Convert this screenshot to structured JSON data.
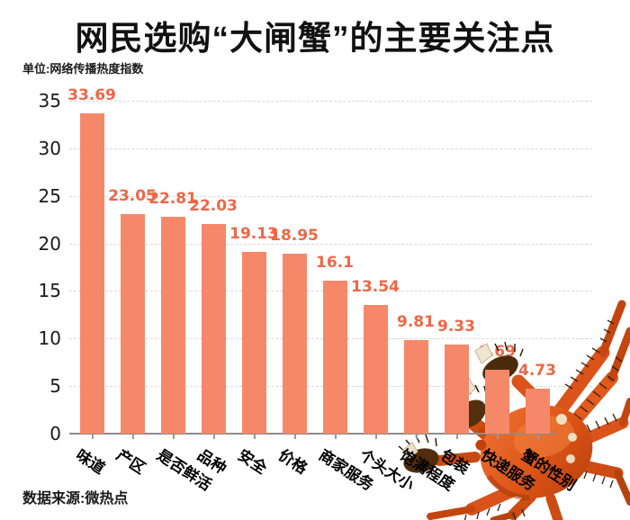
{
  "title": "网民选购“大闸蟹”的主要关注点",
  "unit_label": "单位:网络传播热度指数",
  "source": "数据来源:微热点",
  "decor": {
    "crab_image": "cooked-hairy-crab"
  },
  "colors": {
    "bar": "#f6886a",
    "value_label": "#ee6747",
    "gridline": "#d7d7d7",
    "axis": "#8c8c8c",
    "text": "#111111",
    "crab_body": "#dc5517"
  },
  "chart_data": {
    "type": "bar",
    "title": "网民选购“大闸蟹”的主要关注点",
    "xlabel": "",
    "ylabel": "网络传播热度指数",
    "categories": [
      "味道",
      "产区",
      "是否鲜活",
      "品种",
      "安全",
      "价格",
      "商家服务",
      "个头大小",
      "饱满程度",
      "包装",
      "快递服务",
      "蟹的性别"
    ],
    "values": [
      33.69,
      23.05,
      22.81,
      22.03,
      19.13,
      18.95,
      16.1,
      13.54,
      9.81,
      9.33,
      6.69,
      4.73
    ],
    "value_labels": [
      "33.69",
      "23.05",
      "22.81",
      "22.03",
      "19.13",
      "18.95",
      "16.1",
      "13.54",
      "9.81",
      "9.33",
      "6.69",
      "4.73"
    ],
    "ylim": [
      0,
      35
    ],
    "yticks": [
      0,
      5,
      10,
      15,
      20,
      25,
      30,
      35
    ],
    "grid": "horizontal-dashed",
    "legend": "none"
  }
}
